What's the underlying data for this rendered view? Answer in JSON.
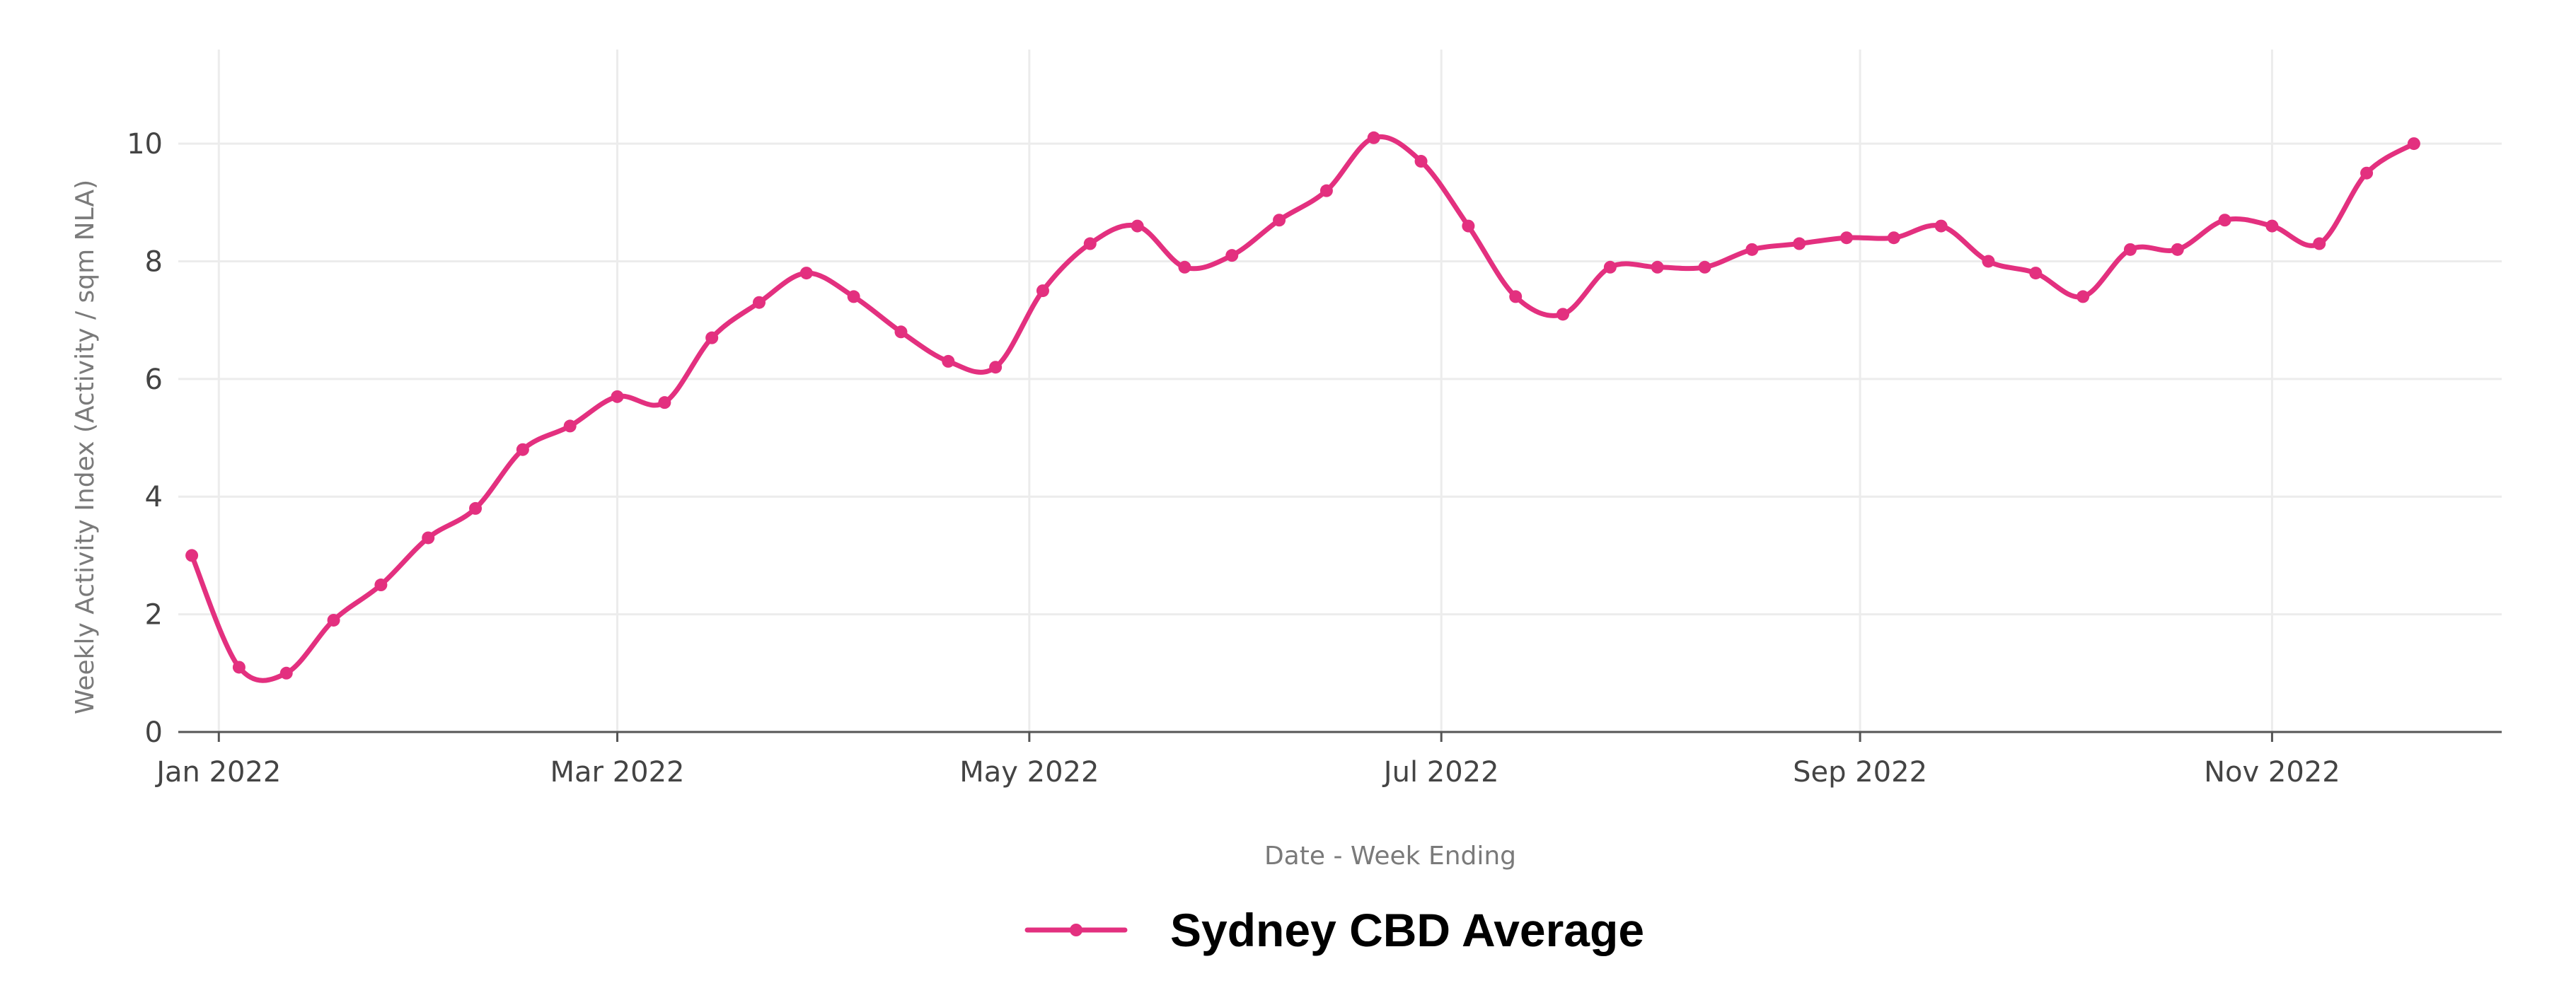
{
  "chart_data": {
    "type": "line",
    "xlabel": "Date - Week Ending",
    "ylabel": "Weekly Activity Index (Activity / sqm NLA)",
    "ylim": [
      0,
      11.6
    ],
    "xlim": [
      "2021-12-26",
      "2022-12-05"
    ],
    "grid": true,
    "legend_position": "bottom-center",
    "yticks": [
      0,
      2,
      4,
      6,
      8,
      10
    ],
    "xticks": [
      {
        "date": "2022-01-01",
        "label": "Jan 2022"
      },
      {
        "date": "2022-03-01",
        "label": "Mar 2022"
      },
      {
        "date": "2022-05-01",
        "label": "May 2022"
      },
      {
        "date": "2022-07-01",
        "label": "Jul 2022"
      },
      {
        "date": "2022-09-01",
        "label": "Sep 2022"
      },
      {
        "date": "2022-11-01",
        "label": "Nov 2022"
      }
    ],
    "series": [
      {
        "name": "Sydney CBD Average",
        "color": "#e3307f",
        "x": [
          "2021-12-28",
          "2022-01-04",
          "2022-01-11",
          "2022-01-18",
          "2022-01-25",
          "2022-02-01",
          "2022-02-08",
          "2022-02-15",
          "2022-02-22",
          "2022-03-01",
          "2022-03-08",
          "2022-03-15",
          "2022-03-22",
          "2022-03-29",
          "2022-04-05",
          "2022-04-12",
          "2022-04-19",
          "2022-04-26",
          "2022-05-03",
          "2022-05-10",
          "2022-05-17",
          "2022-05-24",
          "2022-05-31",
          "2022-06-07",
          "2022-06-14",
          "2022-06-21",
          "2022-06-28",
          "2022-07-05",
          "2022-07-12",
          "2022-07-19",
          "2022-07-26",
          "2022-08-02",
          "2022-08-09",
          "2022-08-16",
          "2022-08-23",
          "2022-08-30",
          "2022-09-06",
          "2022-09-13",
          "2022-09-20",
          "2022-09-27",
          "2022-10-04",
          "2022-10-11",
          "2022-10-18",
          "2022-10-25",
          "2022-11-01",
          "2022-11-08",
          "2022-11-15",
          "2022-11-22"
        ],
        "values": [
          3.0,
          1.1,
          1.0,
          1.9,
          2.5,
          3.3,
          3.8,
          4.8,
          5.2,
          5.7,
          5.6,
          6.7,
          7.3,
          7.8,
          7.4,
          6.8,
          6.3,
          6.2,
          7.5,
          8.3,
          8.6,
          7.9,
          8.1,
          8.7,
          9.2,
          10.1,
          9.7,
          8.6,
          7.4,
          7.1,
          7.9,
          7.9,
          7.9,
          8.2,
          8.3,
          8.4,
          8.4,
          8.6,
          8.0,
          7.8,
          7.4,
          8.2,
          8.2,
          8.7,
          8.6,
          8.3,
          9.5,
          10.0
        ]
      }
    ]
  }
}
